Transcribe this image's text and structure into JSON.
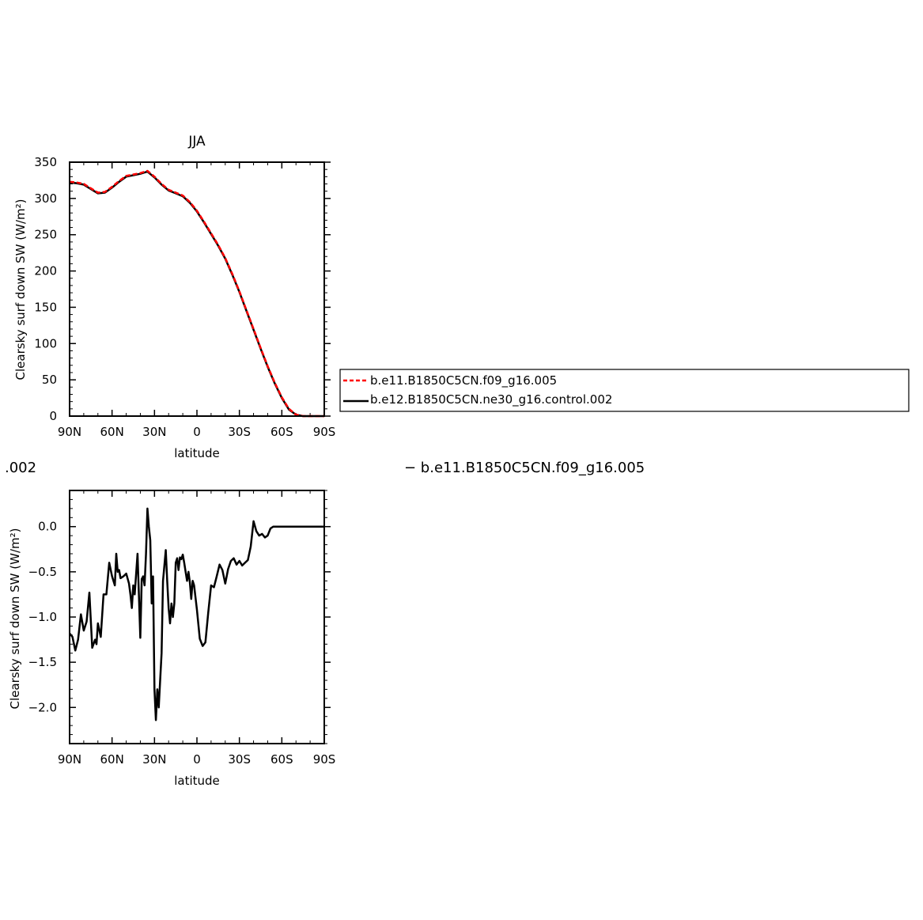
{
  "chart_data": [
    {
      "type": "line",
      "title": "JJA",
      "xlabel": "latitude",
      "ylabel": "Clearsky surf down SW (W/m²)",
      "x_tick_labels": [
        "90N",
        "60N",
        "30N",
        "0",
        "30S",
        "60S",
        "90S"
      ],
      "x_tick_values": [
        90,
        60,
        30,
        0,
        -30,
        -60,
        -90
      ],
      "xlim": [
        90,
        -90
      ],
      "y_tick_labels": [
        "0",
        "50",
        "100",
        "150",
        "200",
        "250",
        "300",
        "350"
      ],
      "y_tick_values": [
        0,
        50,
        100,
        150,
        200,
        250,
        300,
        350
      ],
      "ylim": [
        0,
        350
      ],
      "x": [
        90,
        85,
        80,
        75,
        70,
        65,
        60,
        55,
        50,
        45,
        40,
        35,
        30,
        25,
        20,
        15,
        10,
        5,
        0,
        -5,
        -10,
        -15,
        -20,
        -25,
        -30,
        -35,
        -40,
        -45,
        -50,
        -55,
        -60,
        -65,
        -70,
        -75,
        -80,
        -85,
        -90
      ],
      "series": [
        {
          "name": "b.e11.B1850C5CN.f09_g16.005",
          "color": "#ff0000",
          "dashed": true,
          "values": [
            323,
            322,
            320,
            314,
            308,
            309,
            316,
            324,
            331,
            333,
            335,
            338,
            330,
            320,
            312,
            308,
            304,
            295,
            283,
            268,
            252,
            236,
            218,
            196,
            172,
            146,
            120,
            94,
            69,
            46,
            26,
            10,
            2,
            0,
            0,
            0,
            0
          ]
        },
        {
          "name": "b.e12.B1850C5CN.ne30_g16.control.002",
          "color": "#000000",
          "dashed": false,
          "values": [
            322,
            321,
            319,
            313,
            307,
            308,
            315,
            323,
            330,
            332,
            334,
            337,
            329,
            319,
            311,
            307,
            303,
            294,
            282,
            267,
            251,
            235,
            217,
            195,
            171,
            145,
            119,
            93,
            68,
            45,
            25,
            9,
            2,
            0,
            0,
            0,
            0
          ]
        }
      ],
      "legend": {
        "placement": "right",
        "entries": [
          "b.e11.B1850C5CN.f09_g16.005",
          "b.e12.B1850C5CN.ne30_g16.control.002"
        ]
      }
    },
    {
      "type": "line",
      "title": "",
      "title_left_fragment": ".002",
      "title_right_text": "− b.e11.B1850C5CN.f09_g16.005",
      "xlabel": "latitude",
      "ylabel": "Clearsky surf down SW (W/m²)",
      "x_tick_labels": [
        "90N",
        "60N",
        "30N",
        "0",
        "30S",
        "60S",
        "90S"
      ],
      "x_tick_values": [
        90,
        60,
        30,
        0,
        -30,
        -60,
        -90
      ],
      "xlim": [
        90,
        -90
      ],
      "y_tick_labels": [
        "−2.0",
        "−1.5",
        "−1.0",
        "−0.5",
        "0.0"
      ],
      "y_tick_values": [
        -2.0,
        -1.5,
        -1.0,
        -0.5,
        0.0
      ],
      "ylim": [
        -2.4,
        0.4
      ],
      "series": [
        {
          "name": "difference",
          "color": "#000000",
          "x": [
            90,
            88,
            86,
            84,
            82,
            80,
            78,
            76,
            74,
            72,
            71,
            70,
            68,
            66,
            64,
            62,
            60,
            58,
            57,
            56,
            55,
            54,
            52,
            50,
            48,
            47,
            46,
            45,
            44,
            42,
            40,
            39,
            38,
            37,
            36,
            35,
            34,
            33,
            32,
            31,
            30,
            29,
            28,
            27,
            26,
            25,
            24,
            22,
            21,
            20,
            19,
            18,
            17,
            16,
            15,
            14,
            13,
            12,
            11,
            10,
            9,
            8,
            7,
            6,
            5,
            4,
            3,
            2,
            0,
            -2,
            -4,
            -6,
            -8,
            -10,
            -12,
            -14,
            -16,
            -18,
            -20,
            -22,
            -24,
            -26,
            -28,
            -30,
            -32,
            -34,
            -36,
            -38,
            -40,
            -42,
            -44,
            -46,
            -48,
            -50,
            -52,
            -54,
            -55,
            -56,
            -58,
            -60,
            -62,
            -64,
            -66,
            -68,
            -70,
            -72,
            -74,
            -76,
            -78,
            -80,
            -82,
            -84,
            -86,
            -88,
            -90
          ],
          "values": [
            -1.18,
            -1.22,
            -1.37,
            -1.25,
            -0.97,
            -1.15,
            -1.05,
            -0.73,
            -1.34,
            -1.25,
            -1.3,
            -1.07,
            -1.22,
            -0.75,
            -0.75,
            -0.4,
            -0.55,
            -0.65,
            -0.3,
            -0.5,
            -0.48,
            -0.57,
            -0.55,
            -0.52,
            -0.63,
            -0.75,
            -0.9,
            -0.65,
            -0.75,
            -0.3,
            -1.23,
            -0.58,
            -0.55,
            -0.65,
            -0.3,
            0.2,
            0.0,
            -0.15,
            -0.85,
            -0.55,
            -1.8,
            -2.14,
            -1.8,
            -2.0,
            -1.7,
            -1.4,
            -0.6,
            -0.26,
            -0.6,
            -0.9,
            -1.07,
            -0.85,
            -1.0,
            -0.85,
            -0.4,
            -0.35,
            -0.48,
            -0.34,
            -0.36,
            -0.31,
            -0.4,
            -0.5,
            -0.6,
            -0.5,
            -0.62,
            -0.8,
            -0.6,
            -0.65,
            -0.92,
            -1.24,
            -1.32,
            -1.28,
            -0.95,
            -0.65,
            -0.67,
            -0.55,
            -0.42,
            -0.48,
            -0.63,
            -0.47,
            -0.38,
            -0.35,
            -0.42,
            -0.38,
            -0.43,
            -0.4,
            -0.37,
            -0.22,
            0.06,
            -0.05,
            -0.1,
            -0.08,
            -0.12,
            -0.1,
            -0.02,
            0.0,
            0.0,
            0.0,
            0.0,
            0.0,
            0.0,
            0.0,
            0.0,
            0.0,
            0.0,
            0.0,
            0.0,
            0.0,
            0.0,
            0.0,
            0.0,
            0.0,
            0.0,
            0.0,
            0.0
          ]
        }
      ]
    }
  ]
}
